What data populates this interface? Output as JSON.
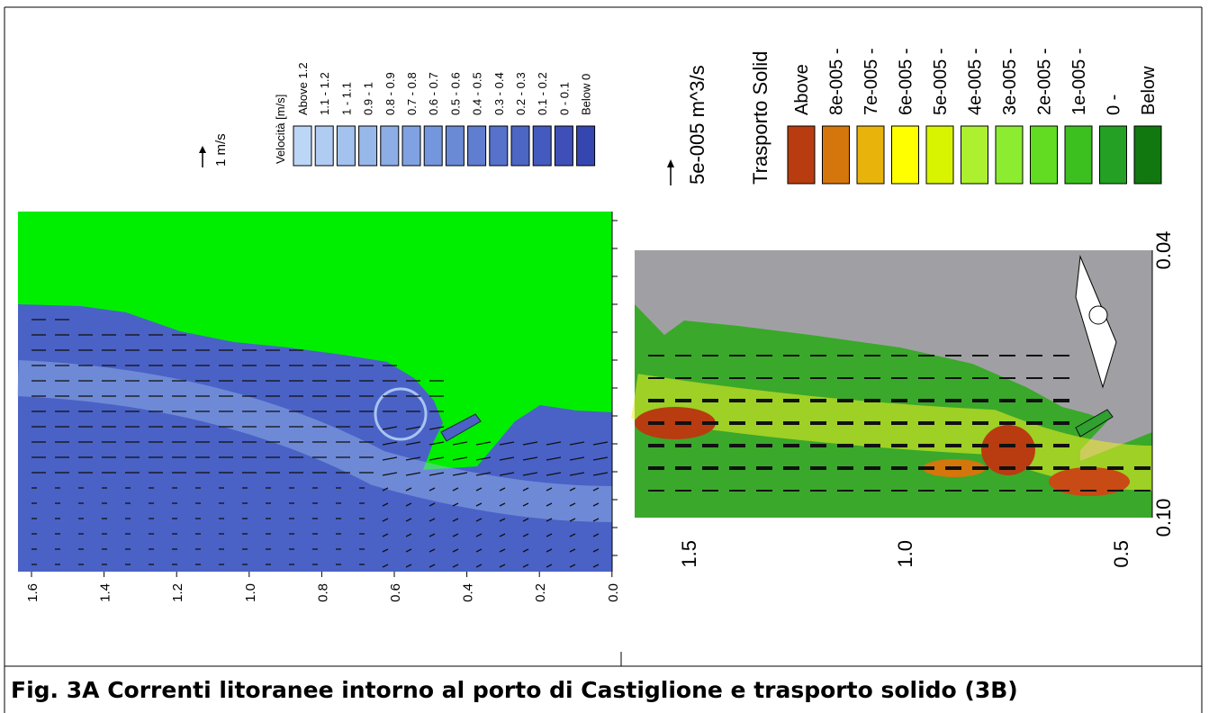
{
  "left": {
    "scale_label": "1 m/s",
    "legend_title": "Velocità [m/s]",
    "legend": [
      {
        "label": "Above 1.2",
        "color": "#bcd6f6"
      },
      {
        "label": "1.1 - 1.2",
        "color": "#b0ccf2"
      },
      {
        "label": "1 - 1.1",
        "color": "#a4c2ee"
      },
      {
        "label": "0.9 - 1",
        "color": "#98b8ea"
      },
      {
        "label": "0.8 - 0.9",
        "color": "#8cade6"
      },
      {
        "label": "0.7 - 0.8",
        "color": "#80a2e2"
      },
      {
        "label": "0.6 - 0.7",
        "color": "#7496dc"
      },
      {
        "label": "0.5 - 0.6",
        "color": "#6a8ad6"
      },
      {
        "label": "0.4 - 0.5",
        "color": "#607ed0"
      },
      {
        "label": "0.3 - 0.4",
        "color": "#5672ca"
      },
      {
        "label": "0.2 - 0.3",
        "color": "#4c66c4"
      },
      {
        "label": "0.1 - 0.2",
        "color": "#445abe"
      },
      {
        "label": "0 - 0.1",
        "color": "#3e50b8"
      },
      {
        "label": "Below 0",
        "color": "#3646b0"
      }
    ],
    "x_ticks": [
      "1.6",
      "1.4",
      "1.2",
      "1.0",
      "0.8",
      "0.6",
      "0.4",
      "0.2",
      "0.0"
    ]
  },
  "right": {
    "legend_title": "Trasporto Solid",
    "scale_label": "5e-005 m^3/s",
    "legend": [
      {
        "label": "Above",
        "color": "#b83c10"
      },
      {
        "label": "8e-005 -",
        "color": "#d4760c"
      },
      {
        "label": "7e-005 -",
        "color": "#e8b40c"
      },
      {
        "label": "6e-005 -",
        "color": "#ffff00"
      },
      {
        "label": "5e-005 -",
        "color": "#d8f400"
      },
      {
        "label": "4e-005 -",
        "color": "#acf030"
      },
      {
        "label": "3e-005 -",
        "color": "#8cec30"
      },
      {
        "label": "2e-005 -",
        "color": "#62dc22"
      },
      {
        "label": "1e-005 -",
        "color": "#3cc020"
      },
      {
        "label": "0 -",
        "color": "#24a024"
      },
      {
        "label": "Below",
        "color": "#10780f"
      }
    ],
    "x_ticks": [
      "1.5",
      "1.0",
      "0.5"
    ],
    "y_ticks": [
      "0.04",
      "0.10"
    ]
  },
  "caption": "Fig. 3A Correnti litoranee intorno al porto di Castiglione e trasporto solido (3B)"
}
